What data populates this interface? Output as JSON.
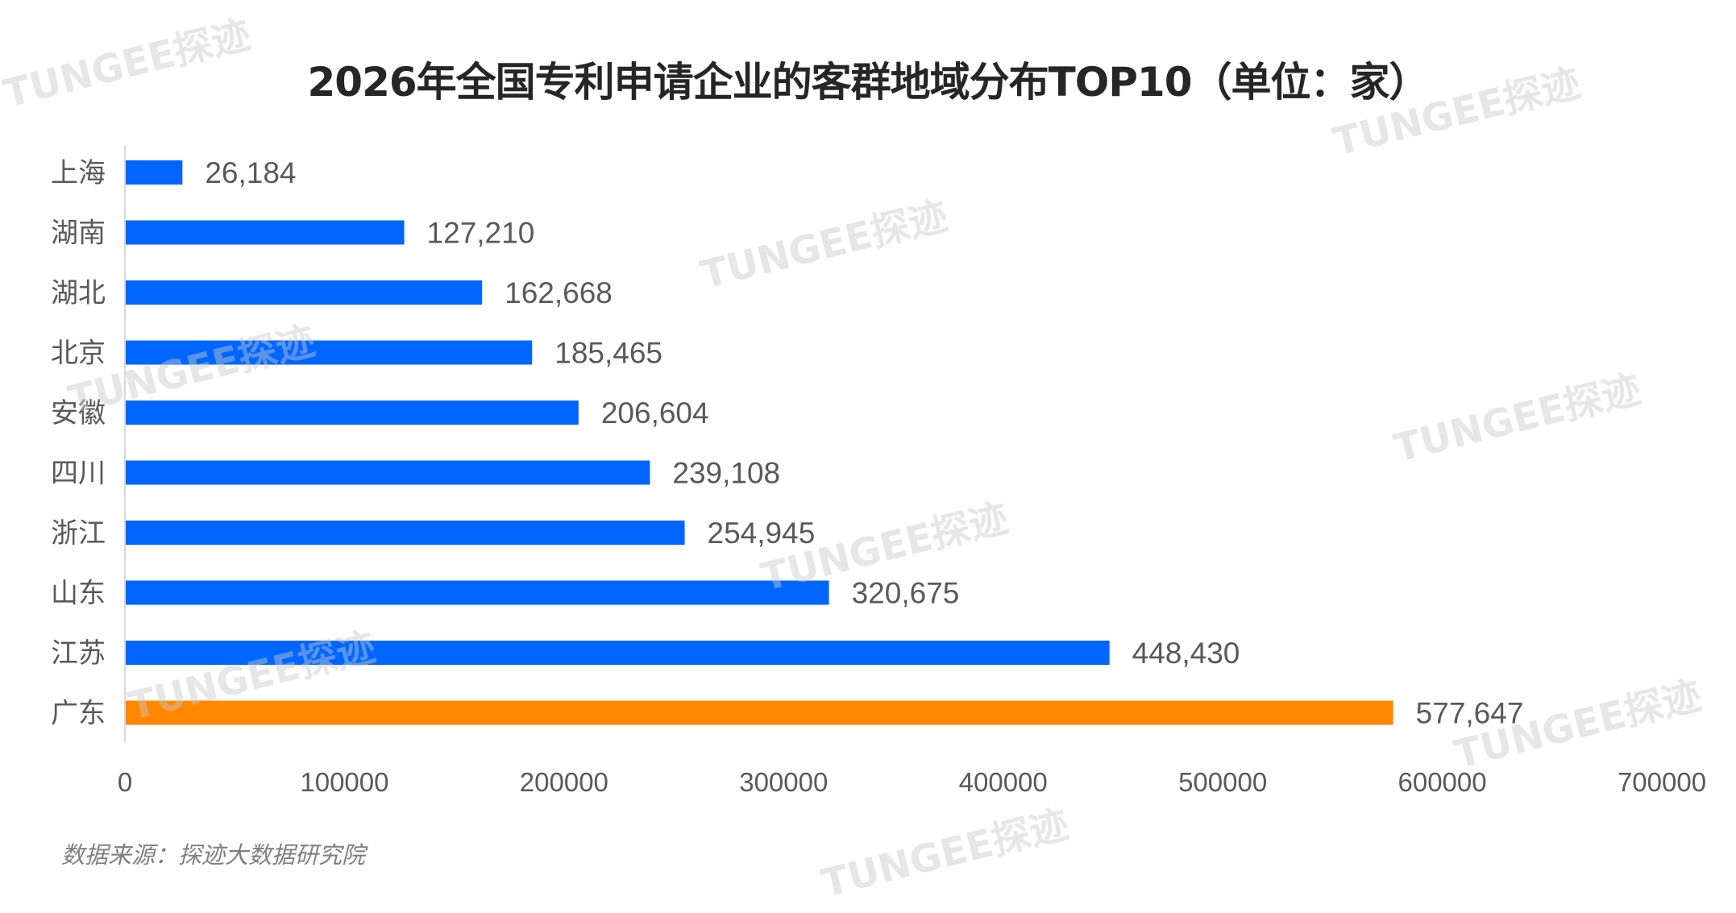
{
  "chart_data": {
    "type": "bar",
    "orientation": "horizontal",
    "title": "2026年全国专利申请企业的客群地域分布TOP10（单位：家）",
    "categories": [
      "上海",
      "湖南",
      "湖北",
      "北京",
      "安徽",
      "四川",
      "浙江",
      "山东",
      "江苏",
      "广东"
    ],
    "values": [
      26184,
      127210,
      162668,
      185465,
      206604,
      239108,
      254945,
      320675,
      448430,
      577647
    ],
    "value_labels": [
      "26,184",
      "127,210",
      "162,668",
      "185,465",
      "206,604",
      "239,108",
      "254,945",
      "320,675",
      "448,430",
      "577,647"
    ],
    "highlight_index": 9,
    "xlim": [
      0,
      700000
    ],
    "xticks": [
      0,
      100000,
      200000,
      300000,
      400000,
      500000,
      600000,
      700000
    ],
    "xtick_labels": [
      "0",
      "100000",
      "200000",
      "300000",
      "400000",
      "500000",
      "600000",
      "700000"
    ],
    "xlabel": "",
    "ylabel": "",
    "grid": false,
    "colors": {
      "bar": "#0066FF",
      "highlight": "#FF8800",
      "text": "#595959",
      "axis": "#d9d9d9"
    }
  },
  "source": "数据来源：探迹大数据研究院",
  "watermark": "TUNGEE探迹"
}
